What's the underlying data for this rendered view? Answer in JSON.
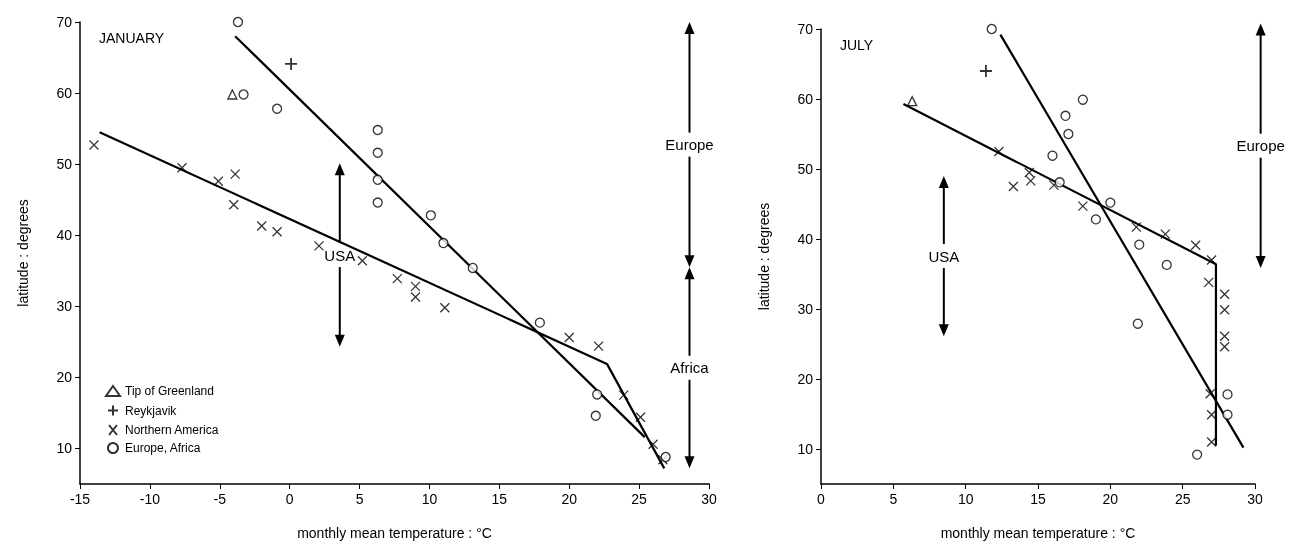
{
  "chart_data": [
    {
      "type": "scatter",
      "title": "JANUARY",
      "xlabel": "monthly mean temperature : °C",
      "ylabel": "latitude : degrees",
      "xlim": [
        -15,
        30
      ],
      "xticks": [
        -15,
        -10,
        -5,
        0,
        5,
        10,
        15,
        20,
        25,
        30
      ],
      "ylim": [
        5,
        70
      ],
      "yticks": [
        10,
        20,
        30,
        40,
        50,
        60,
        70
      ],
      "grid": false,
      "legend": "bottom left",
      "annotations": [
        "USA",
        "Europe",
        "Africa"
      ],
      "series": [
        {
          "name": "Tip of Greenland",
          "type": "scatter",
          "marker": "triangle",
          "color": "#000000",
          "x": [
            -4.1
          ],
          "values": [
            59.8
          ]
        },
        {
          "name": "Reykjavik",
          "type": "scatter",
          "marker": "cross",
          "color": "#000000",
          "x": [
            0.1
          ],
          "values": [
            64.1
          ]
        },
        {
          "name": "Northern America",
          "type": "scatter",
          "marker": "x",
          "color": "#000000",
          "x": [
            -14.0,
            -7.7,
            -5.1,
            -3.9,
            -4.0,
            -2.0,
            -0.9,
            2.1,
            5.2,
            7.7,
            9.0,
            9.0,
            11.1,
            20.0,
            22.1,
            23.9,
            25.1,
            26.0,
            26.7
          ],
          "values": [
            52.7,
            49.5,
            47.6,
            48.6,
            44.3,
            41.3,
            40.5,
            38.5,
            36.4,
            33.9,
            32.8,
            31.3,
            29.8,
            25.6,
            24.4,
            17.5,
            14.4,
            10.6,
            8.4
          ]
        },
        {
          "name": "Europe, Africa",
          "type": "scatter",
          "marker": "circle",
          "color": "#000000",
          "x": [
            -3.7,
            -3.3,
            -0.9,
            6.3,
            6.3,
            6.3,
            6.3,
            10.1,
            11.0,
            13.1,
            17.9,
            22.0,
            21.9,
            26.9
          ],
          "values": [
            70,
            59.8,
            57.8,
            54.8,
            51.6,
            47.8,
            44.6,
            42.8,
            38.9,
            35.4,
            27.7,
            17.6,
            14.6,
            8.8
          ]
        },
        {
          "type": "line",
          "color": "#000000",
          "x": [
            -3.9,
            25.4
          ],
          "values": [
            68.0,
            11.6
          ]
        },
        {
          "type": "line",
          "color": "#000000",
          "x": [
            -13.6,
            22.7,
            26.8
          ],
          "values": [
            54.5,
            21.9,
            7.2
          ]
        }
      ]
    },
    {
      "type": "scatter",
      "title": "JULY",
      "xlabel": "monthly mean temperature : °C",
      "ylabel": "latitude : degrees",
      "xlim": [
        0,
        30
      ],
      "xticks": [
        0,
        5,
        10,
        15,
        20,
        25,
        30
      ],
      "ylim": [
        5,
        70
      ],
      "yticks": [
        10,
        20,
        30,
        40,
        50,
        60,
        70
      ],
      "grid": false,
      "annotations": [
        "USA",
        "Europe"
      ],
      "series": [
        {
          "type": "scatter",
          "marker": "triangle",
          "color": "#000000",
          "x": [
            6.3
          ],
          "values": [
            59.7
          ]
        },
        {
          "type": "scatter",
          "marker": "cross",
          "color": "#000000",
          "x": [
            11.4
          ],
          "values": [
            64.0
          ]
        },
        {
          "type": "scatter",
          "marker": "x",
          "color": "#000000",
          "x": [
            12.3,
            13.3,
            14.4,
            14.5,
            16.1,
            18.1,
            21.8,
            23.8,
            25.9,
            27.0,
            26.8,
            27.9,
            27.9,
            27.9,
            27.9,
            26.9,
            27.0,
            27.0
          ],
          "values": [
            52.5,
            47.5,
            49.5,
            48.3,
            47.7,
            44.7,
            41.7,
            40.7,
            39.1,
            37.0,
            33.8,
            32.1,
            29.9,
            26.1,
            24.6,
            17.9,
            14.9,
            11.0
          ]
        },
        {
          "type": "scatter",
          "marker": "circle",
          "color": "#000000",
          "x": [
            11.8,
            18.1,
            16.9,
            17.1,
            16.0,
            16.5,
            20.0,
            19.0,
            22.0,
            23.9,
            21.9,
            28.1,
            28.1,
            26.0
          ],
          "values": [
            70,
            59.9,
            57.6,
            55.0,
            51.9,
            48.1,
            45.2,
            42.8,
            39.2,
            36.3,
            27.9,
            17.8,
            14.9,
            9.2
          ]
        },
        {
          "type": "line",
          "color": "#000000",
          "x": [
            12.4,
            29.2
          ],
          "values": [
            69.2,
            10.2
          ]
        },
        {
          "type": "line",
          "color": "#000000",
          "x": [
            5.7,
            27.3,
            27.3
          ],
          "values": [
            59.3,
            36.4,
            10.5
          ]
        }
      ]
    }
  ]
}
